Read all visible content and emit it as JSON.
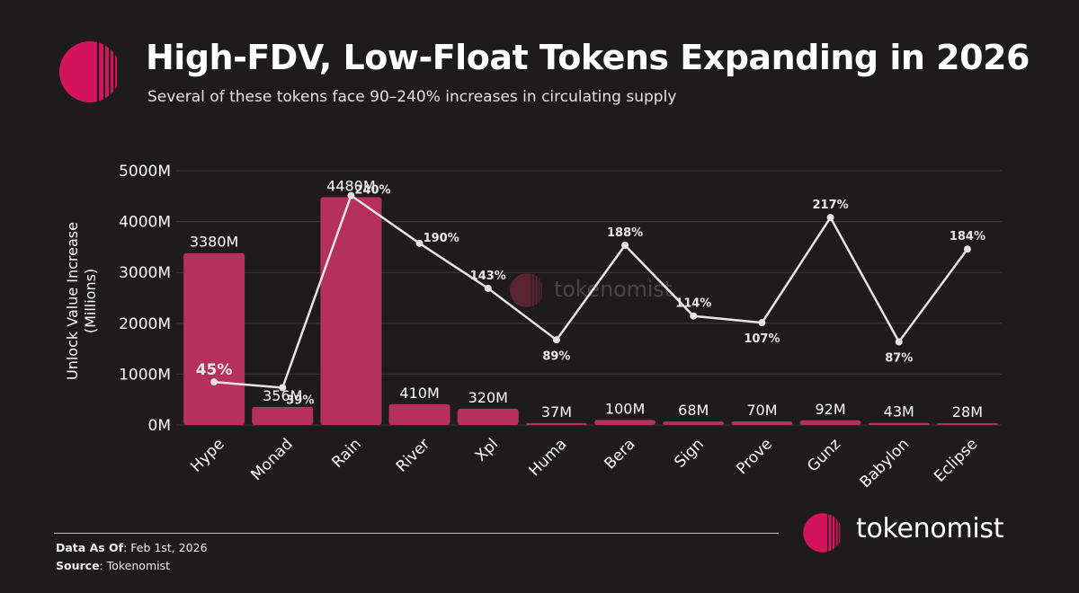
{
  "header": {
    "title": "High-FDV, Low-Float Tokens Expanding in 2026",
    "subtitle": "Several of these tokens face 90–240% increases in circulating supply"
  },
  "watermark": {
    "text": "tokenomist",
    "logo": "tokenomist-logo-icon"
  },
  "brand": {
    "text": "tokenomist",
    "logo": "tokenomist-logo-icon"
  },
  "footer": {
    "data_as_of_label": "Data As Of",
    "data_as_of_value": ": Feb 1st, 2026",
    "source_label": "Source",
    "source_value": ": Tokenomist"
  },
  "colors": {
    "background": "#1e1b1c",
    "bar": "#b5305c",
    "line": "#e8e4e5",
    "brand": "#d4145a",
    "grid": "#3c3839"
  },
  "chart_data": {
    "type": "bar",
    "categories": [
      "Hype",
      "Monad",
      "Rain",
      "River",
      "Xpl",
      "Huma",
      "Bera",
      "Sign",
      "Prove",
      "Gunz",
      "Babylon",
      "Eclipse"
    ],
    "ylabel": "Unlock Value Increase\n(Millions)",
    "ylim": [
      0,
      5000
    ],
    "yticks": [
      0,
      1000,
      2000,
      3000,
      4000,
      5000
    ],
    "ytick_labels": [
      "0M",
      "1000M",
      "2000M",
      "3000M",
      "4000M",
      "5000M"
    ],
    "grid": true,
    "series": [
      {
        "type": "bar",
        "values": [
          3380,
          356,
          4480,
          410,
          320,
          37,
          100,
          68,
          70,
          92,
          43,
          28
        ],
        "labels": [
          "3380M",
          "356M",
          "4480M",
          "410M",
          "320M",
          "37M",
          "100M",
          "68M",
          "70M",
          "92M",
          "43M",
          "28M"
        ]
      },
      {
        "type": "line",
        "values": [
          45,
          39,
          240,
          190,
          143,
          89,
          188,
          114,
          107,
          217,
          87,
          184
        ],
        "labels": [
          "45%",
          "39%",
          "240%",
          "190%",
          "143%",
          "89%",
          "188%",
          "114%",
          "107%",
          "217%",
          "87%",
          "184%"
        ]
      }
    ]
  }
}
